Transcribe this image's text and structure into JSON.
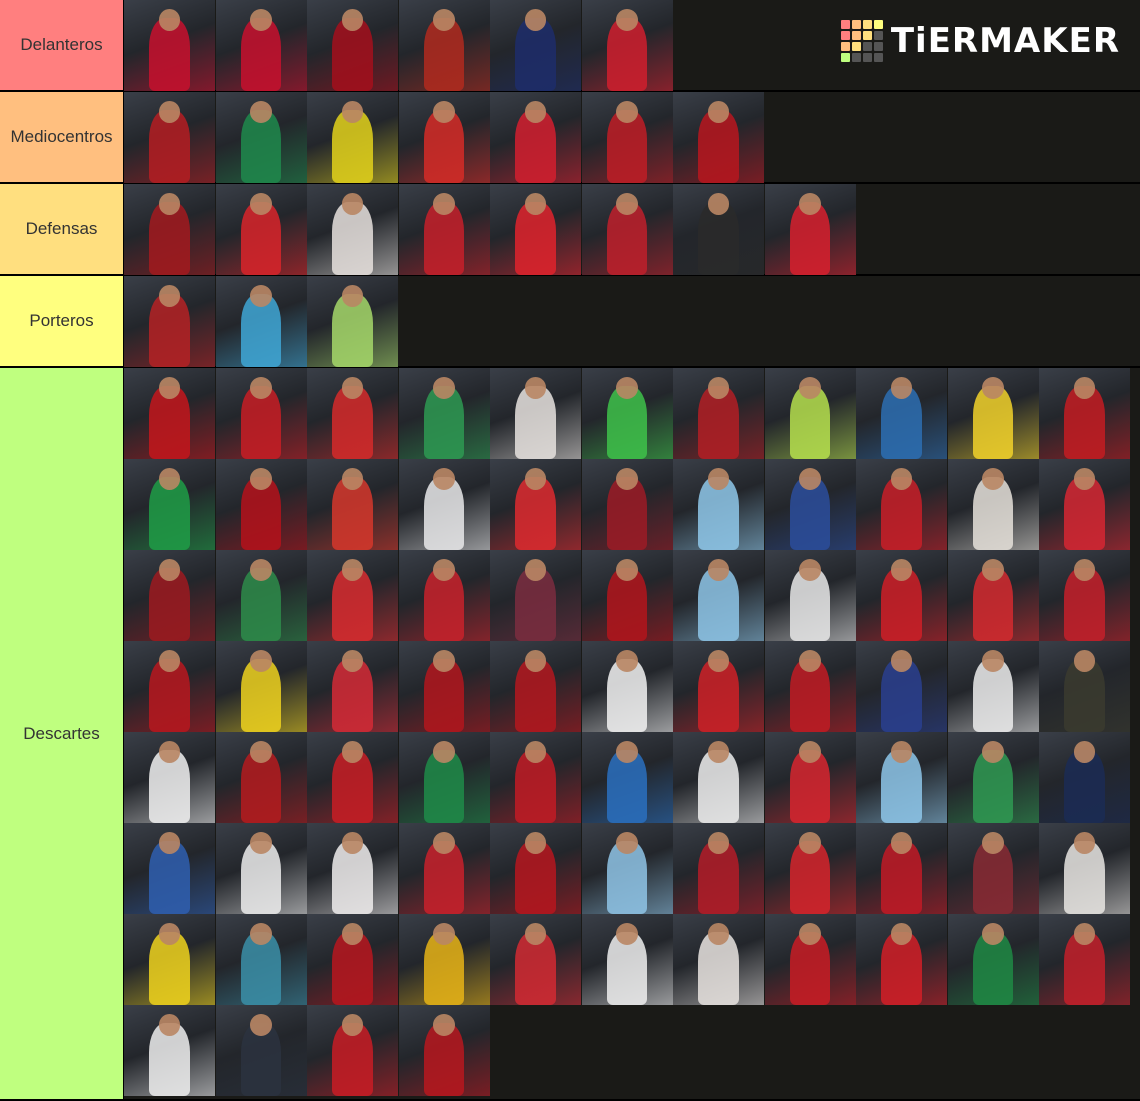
{
  "brand": {
    "name": "TiERMAKER",
    "grid_colors": [
      "#ff7f7f",
      "#ffbf7f",
      "#ffdf7f",
      "#ffff7f",
      "#ff7f7f",
      "#ffbf7f",
      "#ffdf7f",
      "#555555",
      "#ffbf7f",
      "#ffdf7f",
      "#555555",
      "#555555",
      "#bfff7f",
      "#555555",
      "#555555",
      "#555555"
    ]
  },
  "tiers": [
    {
      "label": "Delanteros",
      "color": "#ff7f7f",
      "players": [
        {
          "icon": "player-photo",
          "kit": "#c8102e"
        },
        {
          "icon": "player-photo",
          "kit": "#c8102e"
        },
        {
          "icon": "player-photo",
          "kit": "#a50f1c"
        },
        {
          "icon": "player-photo",
          "kit": "#b22a1e"
        },
        {
          "icon": "player-photo",
          "kit": "#1d2d6b"
        },
        {
          "icon": "player-photo",
          "kit": "#d01f2e"
        }
      ]
    },
    {
      "label": "Mediocentros",
      "color": "#ffbf7f",
      "players": [
        {
          "icon": "player-photo",
          "kit": "#b51d22"
        },
        {
          "icon": "player-photo",
          "kit": "#1f8a4c"
        },
        {
          "icon": "player-photo",
          "kit": "#e3d21b"
        },
        {
          "icon": "player-photo",
          "kit": "#d62b27"
        },
        {
          "icon": "player-photo",
          "kit": "#d41f2f"
        },
        {
          "icon": "player-photo",
          "kit": "#c01d26"
        },
        {
          "icon": "player-photo",
          "kit": "#b8161f"
        }
      ]
    },
    {
      "label": "Defensas",
      "color": "#ffdf7f",
      "players": [
        {
          "icon": "player-photo",
          "kit": "#a31a1e"
        },
        {
          "icon": "player-photo",
          "kit": "#d9242a"
        },
        {
          "icon": "player-photo",
          "kit": "#e7e2de"
        },
        {
          "icon": "player-photo",
          "kit": "#c7202a"
        },
        {
          "icon": "player-photo",
          "kit": "#e0232d"
        },
        {
          "icon": "player-photo",
          "kit": "#c0202b"
        },
        {
          "icon": "player-photo",
          "kit": "#2a2a2a"
        },
        {
          "icon": "player-photo",
          "kit": "#d8202e"
        }
      ]
    },
    {
      "label": "Porteros",
      "color": "#ffff7f",
      "players": [
        {
          "icon": "player-photo",
          "kit": "#b52225"
        },
        {
          "icon": "player-photo",
          "kit": "#3fa7d6"
        },
        {
          "icon": "player-photo",
          "kit": "#a6d86a"
        }
      ]
    },
    {
      "label": "Descartes",
      "color": "#bfff7f",
      "players": [
        {
          "icon": "player-photo",
          "kit": "#c4161c"
        },
        {
          "icon": "player-photo",
          "kit": "#c81d25"
        },
        {
          "icon": "player-photo",
          "kit": "#d62a2a"
        },
        {
          "icon": "player-photo",
          "kit": "#2e9a52"
        },
        {
          "icon": "player-photo",
          "kit": "#e8e3df"
        },
        {
          "icon": "player-photo",
          "kit": "#3ec24a"
        },
        {
          "icon": "player-photo",
          "kit": "#b31f24"
        },
        {
          "icon": "player-photo",
          "kit": "#b6e04e"
        },
        {
          "icon": "player-photo",
          "kit": "#2d6fb3"
        },
        {
          "icon": "player-photo",
          "kit": "#f2d22a"
        },
        {
          "icon": "player-photo",
          "kit": "#c41c22"
        },
        {
          "icon": "player-photo",
          "kit": "#1f9e47"
        },
        {
          "icon": "player-photo",
          "kit": "#b5121b"
        },
        {
          "icon": "player-photo",
          "kit": "#d6372b"
        },
        {
          "icon": "player-photo",
          "kit": "#e9e9ea"
        },
        {
          "icon": "player-photo",
          "kit": "#de2a2f"
        },
        {
          "icon": "player-photo",
          "kit": "#9c1b26"
        },
        {
          "icon": "player-photo",
          "kit": "#8fc8ea"
        },
        {
          "icon": "player-photo",
          "kit": "#2b4d9c"
        },
        {
          "icon": "player-photo",
          "kit": "#c91f28"
        },
        {
          "icon": "player-photo",
          "kit": "#e6e2db"
        },
        {
          "icon": "player-photo",
          "kit": "#d62732"
        },
        {
          "icon": "player-photo",
          "kit": "#9e1a20"
        },
        {
          "icon": "player-photo",
          "kit": "#2e8c4a"
        },
        {
          "icon": "player-photo",
          "kit": "#d92b2f"
        },
        {
          "icon": "player-photo",
          "kit": "#c9222b"
        },
        {
          "icon": "player-photo",
          "kit": "#7b2d3f"
        },
        {
          "icon": "player-photo",
          "kit": "#b3151c"
        },
        {
          "icon": "player-photo",
          "kit": "#8ec6e8"
        },
        {
          "icon": "player-photo",
          "kit": "#e9e9e9"
        },
        {
          "icon": "player-photo",
          "kit": "#cf1f27"
        },
        {
          "icon": "player-photo",
          "kit": "#d52a2f"
        },
        {
          "icon": "player-photo",
          "kit": "#c6202a"
        },
        {
          "icon": "player-photo",
          "kit": "#b8171f"
        },
        {
          "icon": "player-photo",
          "kit": "#efd21f"
        },
        {
          "icon": "player-photo",
          "kit": "#d52a36"
        },
        {
          "icon": "player-photo",
          "kit": "#b3161d"
        },
        {
          "icon": "player-photo",
          "kit": "#b4171e"
        },
        {
          "icon": "player-photo",
          "kit": "#f2f2f2"
        },
        {
          "icon": "player-photo",
          "kit": "#cf2127"
        },
        {
          "icon": "player-photo",
          "kit": "#c21b23"
        },
        {
          "icon": "player-photo",
          "kit": "#2a3f8f"
        },
        {
          "icon": "player-photo",
          "kit": "#ededed"
        },
        {
          "icon": "player-photo",
          "kit": "#3b3b2f"
        },
        {
          "icon": "player-photo",
          "kit": "#f1f1f1"
        },
        {
          "icon": "player-photo",
          "kit": "#b51b1f"
        },
        {
          "icon": "player-photo",
          "kit": "#c91d24"
        },
        {
          "icon": "player-photo",
          "kit": "#1f8c49"
        },
        {
          "icon": "player-photo",
          "kit": "#c21b24"
        },
        {
          "icon": "player-photo",
          "kit": "#2a70c0"
        },
        {
          "icon": "player-photo",
          "kit": "#efefef"
        },
        {
          "icon": "player-photo",
          "kit": "#d8262f"
        },
        {
          "icon": "player-photo",
          "kit": "#8ec7ea"
        },
        {
          "icon": "player-photo",
          "kit": "#2f9a52"
        },
        {
          "icon": "player-photo",
          "kit": "#1b2b55"
        },
        {
          "icon": "player-photo",
          "kit": "#2f5fb0"
        },
        {
          "icon": "player-photo",
          "kit": "#ededed"
        },
        {
          "icon": "player-photo",
          "kit": "#f0eded"
        },
        {
          "icon": "player-photo",
          "kit": "#c9212b"
        },
        {
          "icon": "player-photo",
          "kit": "#b7161e"
        },
        {
          "icon": "player-photo",
          "kit": "#8fc4e6"
        },
        {
          "icon": "player-photo",
          "kit": "#b41c28"
        },
        {
          "icon": "player-photo",
          "kit": "#d6252b"
        },
        {
          "icon": "player-photo",
          "kit": "#c21a26"
        },
        {
          "icon": "player-photo",
          "kit": "#8a2a34"
        },
        {
          "icon": "player-photo",
          "kit": "#e9e6e3"
        },
        {
          "icon": "player-photo",
          "kit": "#f0d41d"
        },
        {
          "icon": "player-photo",
          "kit": "#3b8fa8"
        },
        {
          "icon": "player-photo",
          "kit": "#b8161f"
        },
        {
          "icon": "player-photo",
          "kit": "#e8b416"
        },
        {
          "icon": "player-photo",
          "kit": "#d22a33"
        },
        {
          "icon": "player-photo",
          "kit": "#eeeeee"
        },
        {
          "icon": "player-photo",
          "kit": "#e9e4e1"
        },
        {
          "icon": "player-photo",
          "kit": "#c91c24"
        },
        {
          "icon": "player-photo",
          "kit": "#d21e27"
        },
        {
          "icon": "player-photo",
          "kit": "#1f8a44"
        },
        {
          "icon": "player-photo",
          "kit": "#c4202a"
        },
        {
          "icon": "player-photo",
          "kit": "#efefef"
        },
        {
          "icon": "player-photo",
          "kit": "#2b3340"
        },
        {
          "icon": "player-photo",
          "kit": "#c91c24"
        },
        {
          "icon": "player-photo",
          "kit": "#b8171e"
        }
      ]
    }
  ]
}
